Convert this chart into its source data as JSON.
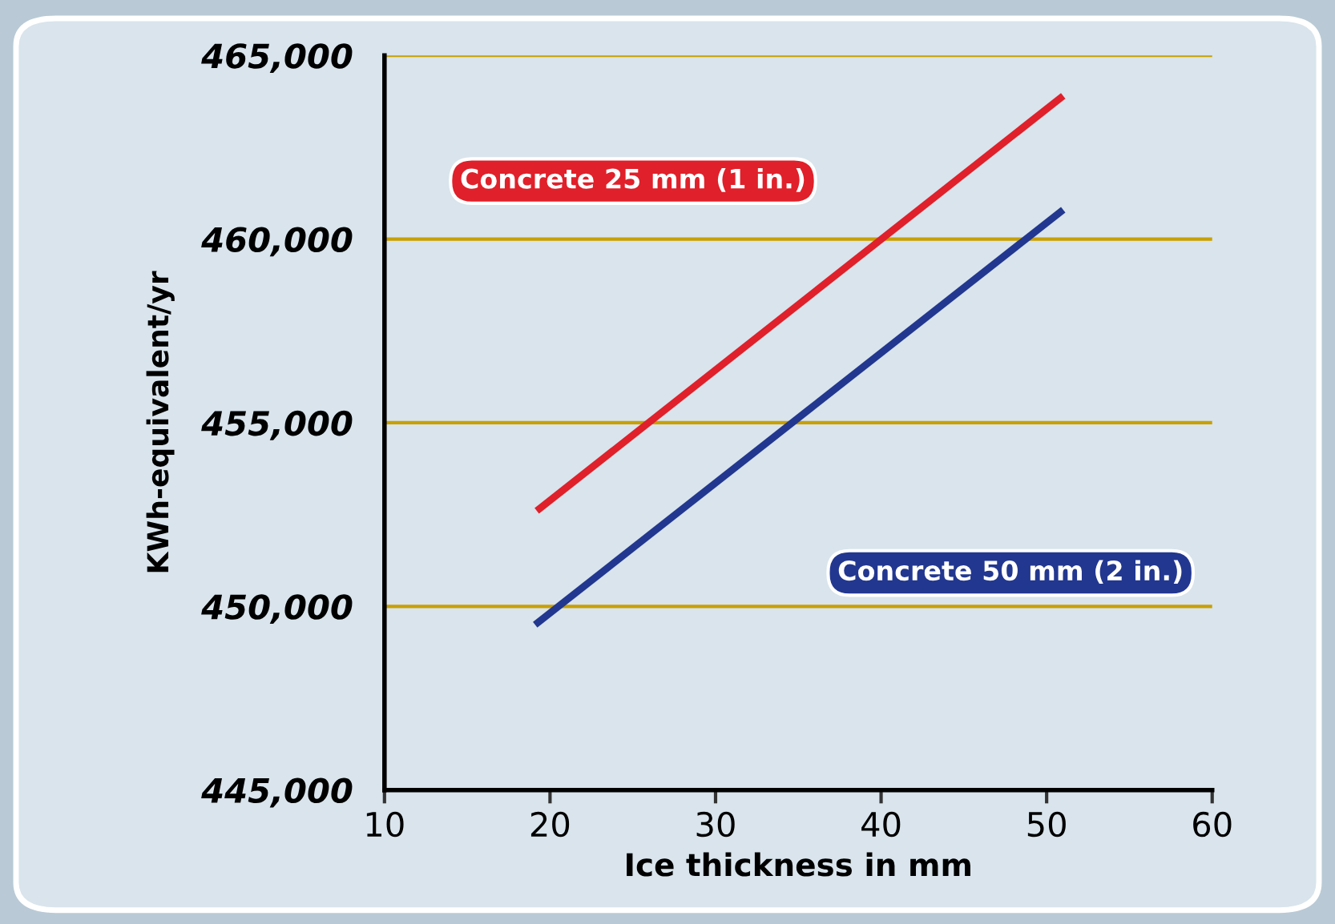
{
  "chart_data": {
    "type": "line",
    "xlabel": "Ice thickness in mm",
    "ylabel": "KWh-equivalent/yr",
    "series": [
      {
        "name": "Concrete 25 mm (1 in.)",
        "color": "#e0202a",
        "x": [
          19.2,
          51.0
        ],
        "values": [
          452600,
          463900
        ]
      },
      {
        "name": "Concrete 50 mm (2 in.)",
        "color": "#22378f",
        "x": [
          19.1,
          51.0
        ],
        "values": [
          449500,
          460800
        ]
      }
    ],
    "xlim": [
      10,
      60
    ],
    "xticks": [
      10,
      20,
      30,
      40,
      50,
      60
    ],
    "ylim": [
      445000,
      465000
    ],
    "yticks": [
      {
        "value": 445000,
        "label": "445,000"
      },
      {
        "value": 450000,
        "label": "450,000"
      },
      {
        "value": 455000,
        "label": "455,000"
      },
      {
        "value": 460000,
        "label": "460,000"
      },
      {
        "value": 465000,
        "label": "465,000"
      }
    ],
    "grid": "y",
    "legend": false,
    "marker": "none",
    "line_style": "solid"
  }
}
